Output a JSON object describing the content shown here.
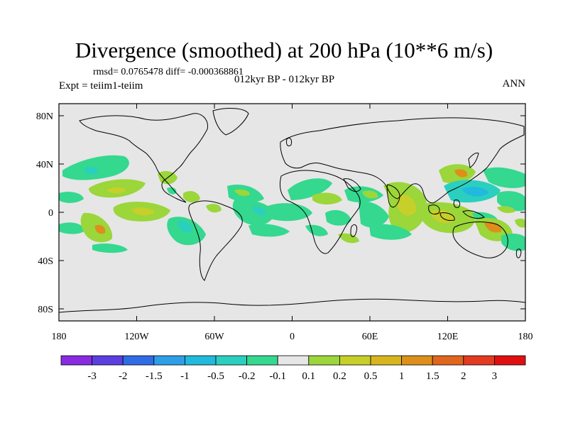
{
  "title": "Divergence (smoothed) at 200 hPa (10**6 m/s)",
  "stats": "rmsd= 0.0765478 diff= -0.000368861",
  "experiment": "Expt = teiim1-teiim",
  "center_label": "012kyr BP - 012kyr BP",
  "season": "ANN",
  "map": {
    "x_ticks": [
      {
        "label": "180",
        "lon": -180
      },
      {
        "label": "120W",
        "lon": -120
      },
      {
        "label": "60W",
        "lon": -60
      },
      {
        "label": "0",
        "lon": 0
      },
      {
        "label": "60E",
        "lon": 60
      },
      {
        "label": "120E",
        "lon": 120
      },
      {
        "label": "180",
        "lon": 180
      }
    ],
    "y_ticks": [
      {
        "label": "80N",
        "lat": 80
      },
      {
        "label": "40N",
        "lat": 40
      },
      {
        "label": "0",
        "lat": 0
      },
      {
        "label": "40S",
        "lat": -40
      },
      {
        "label": "80S",
        "lat": -80
      }
    ]
  },
  "colorbar": {
    "colors": [
      "#8a2be2",
      "#5b3fe0",
      "#2f6ce6",
      "#2e9ee8",
      "#21b9dc",
      "#2bcfbf",
      "#34d88f",
      "#e6e6e6",
      "#9bd63a",
      "#c7cf2a",
      "#d8b51f",
      "#dd8f1c",
      "#e0661e",
      "#e23b1f",
      "#e01010"
    ],
    "labels": [
      "-3",
      "-2",
      "-1.5",
      "-1",
      "-0.5",
      "-0.2",
      "-0.1",
      "0.1",
      "0.2",
      "0.5",
      "1",
      "1.5",
      "2",
      "3"
    ]
  }
}
